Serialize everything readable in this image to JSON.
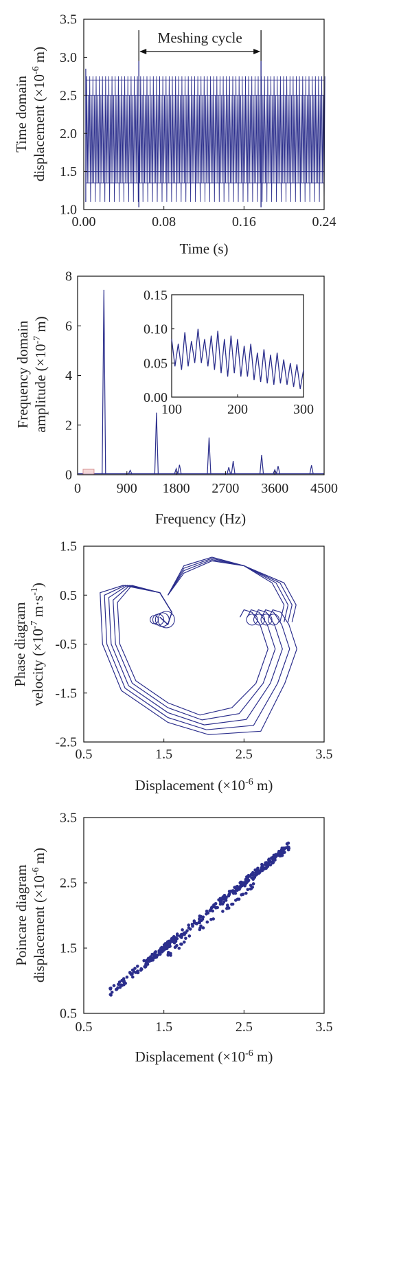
{
  "chart_data": [
    {
      "type": "line",
      "ylabel_line1": "Time domain",
      "ylabel_line2": "displacement (×10",
      "ylabel_exp": "-6",
      "ylabel_tail": " m)",
      "xlabel": "Time (s)",
      "xlim": [
        0,
        0.24
      ],
      "ylim": [
        1.0,
        3.5
      ],
      "xticks": [
        "0.00",
        "0.08",
        "0.16",
        "0.24"
      ],
      "yticks": [
        "1.0",
        "1.5",
        "2.0",
        "2.5",
        "3.0",
        "3.5"
      ],
      "annotation": "Meshing cycle",
      "annotation_range": [
        0.055,
        0.177
      ],
      "series": [
        {
          "color": "#2b2e8c",
          "oscillation_min": 1.1,
          "oscillation_max": 2.75,
          "spike_times": [
            0.055,
            0.177
          ],
          "spike_peak": 2.95
        }
      ]
    },
    {
      "type": "line",
      "ylabel_line1": "Frequency domain",
      "ylabel_line2": "amplitude (×10",
      "ylabel_exp": "-7",
      "ylabel_tail": " m)",
      "xlabel": "Frequency (Hz)",
      "xlim": [
        0,
        4500
      ],
      "ylim": [
        0,
        8
      ],
      "xticks": [
        "0",
        "900",
        "1800",
        "2700",
        "3600",
        "4500"
      ],
      "yticks": [
        "0",
        "2",
        "4",
        "6",
        "8"
      ],
      "peaks": [
        {
          "f": 480,
          "a": 7.45
        },
        {
          "f": 960,
          "a": 0.18
        },
        {
          "f": 1440,
          "a": 2.5
        },
        {
          "f": 1800,
          "a": 0.25
        },
        {
          "f": 1860,
          "a": 0.4
        },
        {
          "f": 2400,
          "a": 1.5
        },
        {
          "f": 2760,
          "a": 0.3
        },
        {
          "f": 2840,
          "a": 0.55
        },
        {
          "f": 3360,
          "a": 0.8
        },
        {
          "f": 3600,
          "a": 0.2
        },
        {
          "f": 3660,
          "a": 0.35
        },
        {
          "f": 4270,
          "a": 0.38
        }
      ],
      "inset": {
        "xlim": [
          100,
          300
        ],
        "ylim": [
          0,
          0.15
        ],
        "xticks": [
          "100",
          "200",
          "300"
        ],
        "yticks": [
          "0.00",
          "0.05",
          "0.10",
          "0.15"
        ],
        "x": [
          100,
          105,
          110,
          115,
          120,
          125,
          130,
          135,
          140,
          145,
          150,
          155,
          160,
          165,
          170,
          175,
          180,
          185,
          190,
          195,
          200,
          205,
          210,
          215,
          220,
          225,
          230,
          235,
          240,
          245,
          250,
          255,
          260,
          265,
          270,
          275,
          280,
          285,
          290,
          295,
          300
        ],
        "y": [
          0.085,
          0.045,
          0.078,
          0.04,
          0.095,
          0.045,
          0.082,
          0.05,
          0.1,
          0.05,
          0.085,
          0.045,
          0.09,
          0.04,
          0.097,
          0.035,
          0.085,
          0.03,
          0.09,
          0.035,
          0.085,
          0.03,
          0.075,
          0.03,
          0.078,
          0.025,
          0.065,
          0.022,
          0.07,
          0.02,
          0.062,
          0.018,
          0.065,
          0.02,
          0.055,
          0.018,
          0.05,
          0.015,
          0.048,
          0.012,
          0.04
        ]
      }
    },
    {
      "type": "line",
      "ylabel_line1": "Phase diagram",
      "ylabel_line2": "velocity (×10",
      "ylabel_exp": "-7",
      "ylabel_tail": " m·s",
      "ylabel_exp2": "-1",
      "ylabel_tail2": ")",
      "xlabel_main": "Displacement (×10",
      "xlabel_exp": "-6",
      "xlabel_tail": " m)",
      "xlim": [
        0.5,
        3.5
      ],
      "ylim": [
        -2.5,
        1.5
      ],
      "xticks": [
        "0.5",
        "1.5",
        "2.5",
        "3.5"
      ],
      "yticks": [
        "-2.5",
        "-1.5",
        "-0.5",
        "0.5",
        "1.5"
      ],
      "loops": 5
    },
    {
      "type": "scatter",
      "ylabel_line1": "Poincare diagram",
      "ylabel_line2": "displacement (×10",
      "ylabel_exp": "-6",
      "ylabel_tail": " m)",
      "xlabel_main": "Displacement (×10",
      "xlabel_exp": "-6",
      "xlabel_tail": " m)",
      "xlim": [
        0.5,
        3.5
      ],
      "ylim": [
        0.5,
        3.5
      ],
      "xticks": [
        "0.5",
        "1.5",
        "2.5",
        "3.5"
      ],
      "yticks": [
        "0.5",
        "1.5",
        "2.5",
        "3.5"
      ],
      "range_min": 0.83,
      "range_max": 3.07
    }
  ]
}
